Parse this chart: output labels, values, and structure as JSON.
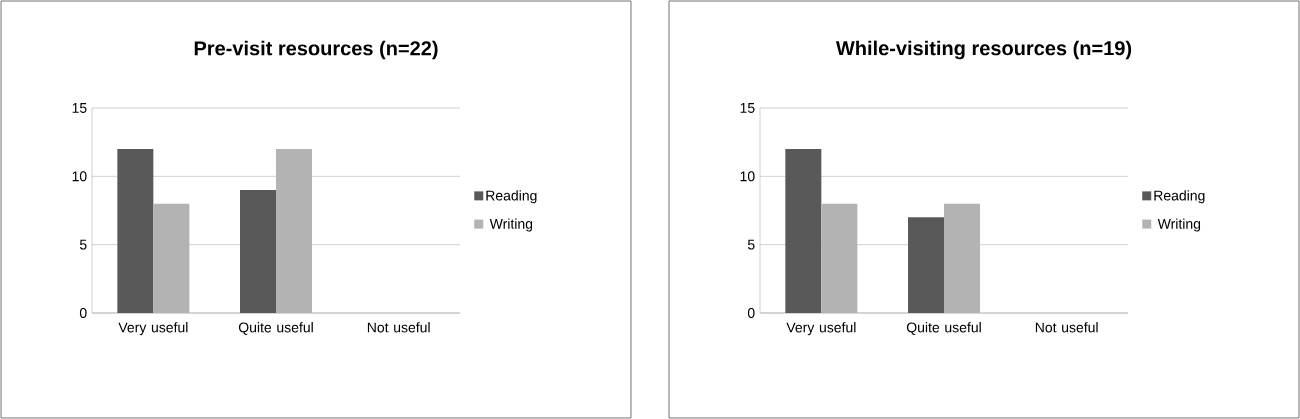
{
  "chart_data": [
    {
      "type": "bar",
      "title": "Pre-visit resources (n=22)",
      "categories": [
        "Very useful",
        "Quite useful",
        "Not useful"
      ],
      "series": [
        {
          "name": "Reading",
          "color": "#595959",
          "values": [
            12,
            9,
            0
          ]
        },
        {
          "name": "Writing",
          "color": "#b3b3b3",
          "values": [
            8,
            12,
            0
          ]
        }
      ],
      "ylim": [
        0,
        15
      ],
      "yticks": [
        0,
        5,
        10,
        15
      ],
      "grid": "y",
      "legend": "right"
    },
    {
      "type": "bar",
      "title": "While-visiting resources (n=19)",
      "categories": [
        "Very useful",
        "Quite useful",
        "Not useful"
      ],
      "series": [
        {
          "name": "Reading",
          "color": "#595959",
          "values": [
            12,
            7,
            0
          ]
        },
        {
          "name": "Writing",
          "color": "#b3b3b3",
          "values": [
            8,
            8,
            0
          ]
        }
      ],
      "ylim": [
        0,
        15
      ],
      "yticks": [
        0,
        5,
        10,
        15
      ],
      "grid": "y",
      "legend": "right"
    }
  ]
}
